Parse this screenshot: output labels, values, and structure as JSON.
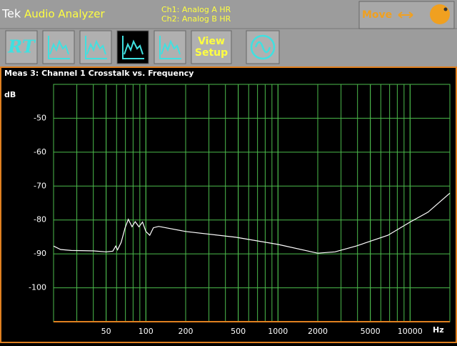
{
  "header": {
    "brand": "Tek",
    "app": "Audio Analyzer",
    "channels": [
      "Ch1: Analog A HR",
      "Ch2: Analog B HR"
    ],
    "move_button": "Move"
  },
  "toolbar": {
    "rt_button": "RT",
    "view_setup": [
      "View",
      "Setup"
    ]
  },
  "chart_data": {
    "type": "line",
    "title": "Meas 3: Channel 1 Crosstalk vs. Frequency",
    "y_label": "dB",
    "x_label": "Hz",
    "log_x": true,
    "grid": true,
    "xlim": [
      20,
      20000
    ],
    "ylim": [
      -110,
      -40
    ],
    "xticks": [
      50,
      100,
      200,
      500,
      1000,
      2000,
      5000,
      10000
    ],
    "yticks": [
      -50,
      -60,
      -70,
      -80,
      -90,
      -100
    ],
    "x": [
      20,
      22.6,
      27.3,
      39.6,
      50,
      56.2,
      59.1,
      61,
      65,
      69.6,
      73.6,
      78.5,
      83,
      88.6,
      94.3,
      100,
      107,
      114,
      125,
      200,
      480,
      1000,
      2000,
      2700,
      3900,
      6800,
      10000,
      13660,
      20000
    ],
    "series": [
      {
        "color": "#ffffff",
        "values": [
          -87.7,
          -88.7,
          -89,
          -89.1,
          -89.4,
          -89.2,
          -87.7,
          -88.8,
          -86.6,
          -82.3,
          -79.8,
          -82,
          -80.5,
          -82,
          -80.6,
          -83.4,
          -84.5,
          -82.3,
          -81.9,
          -83.4,
          -85.1,
          -87.2,
          -89.8,
          -89.4,
          -87.7,
          -84.5,
          -80.6,
          -77.7,
          -72.1
        ]
      }
    ]
  }
}
